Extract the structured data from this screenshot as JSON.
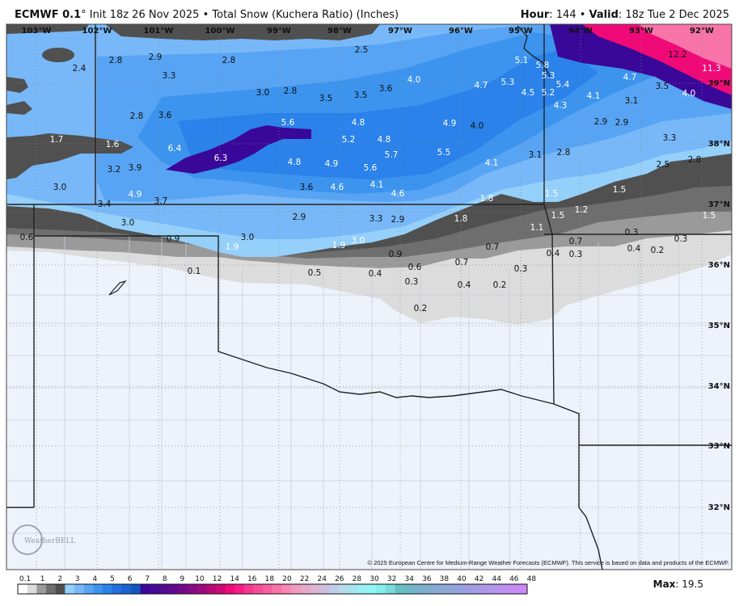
{
  "header": {
    "model": "ECMWF 0.1",
    "degree": "°",
    "title_rest": " Init 18z 26 Nov 2025 • Total Snow (Kuchera Ratio) (Inches)",
    "hour_label": "Hour",
    "hour_value": ": 144 • ",
    "valid_label": "Valid",
    "valid_value": ": 18z Tue 2 Dec 2025"
  },
  "map": {
    "longitudes": [
      "103°W",
      "102°W",
      "101°W",
      "100°W",
      "99°W",
      "98°W",
      "97°W",
      "96°W",
      "95°W",
      "94°W",
      "93°W",
      "92°W"
    ],
    "latitudes": [
      "39°N",
      "38°N",
      "37°N",
      "36°N",
      "35°N",
      "34°N",
      "33°N",
      "32°N"
    ],
    "snow_labels": [
      "2.4",
      "2.8",
      "2.9",
      "2.8",
      "3.3",
      "3.0",
      "2.8",
      "3.5",
      "3.5",
      "3.6",
      "2.5",
      "4.0",
      "4.7",
      "5.3",
      "5.1",
      "5.8",
      "5.3",
      "4.5",
      "5.2",
      "5.4",
      "4.3",
      "4.1",
      "4.7",
      "12.2",
      "11.3",
      "3.5",
      "4.0",
      "3.1",
      "2.9",
      "2.9",
      "3.3",
      "2.8",
      "2.5",
      "2.8",
      "3.1",
      "1.5",
      "1.5",
      "1.2",
      "1.5",
      "1.5",
      "0.3",
      "0.7",
      "0.4",
      "0.3",
      "0.2",
      "0.4",
      "0.3",
      "2.8",
      "3.6",
      "1.7",
      "1.6",
      "6.4",
      "6.3",
      "3.2",
      "3.9",
      "3.0",
      "4.9",
      "3.7",
      "3.4",
      "3.0",
      "5.6",
      "4.8",
      "5.2",
      "4.8",
      "4.9",
      "4.0",
      "4.8",
      "4.9",
      "5.6",
      "5.7",
      "5.5",
      "4.1",
      "3.6",
      "4.6",
      "4.1",
      "4.6",
      "1.8",
      "1.8",
      "2.9",
      "3.3",
      "2.9",
      "1.1",
      "0.6",
      "0.9",
      "3.0",
      "1.9",
      "1.9",
      "3.0",
      "0.1",
      "0.5",
      "0.9",
      "0.7",
      "0.6",
      "0.7",
      "0.3",
      "0.4",
      "0.3",
      "0.4",
      "0.2",
      "0.2"
    ],
    "logo": "WeatherBELL",
    "credit": "© 2025 European Centre for Medium-Range Weather Forecasts (ECMWF). This service is based on data and products of the ECMWF."
  },
  "colorbar": {
    "ticks": [
      "0.1",
      "1",
      "2",
      "3",
      "4",
      "5",
      "6",
      "7",
      "8",
      "9",
      "10",
      "12",
      "14",
      "16",
      "18",
      "20",
      "22",
      "24",
      "26",
      "28",
      "30",
      "32",
      "34",
      "36",
      "38",
      "40",
      "42",
      "44",
      "46",
      "48"
    ],
    "colors": [
      "#ffffff",
      "#dcdcdc",
      "#9a9a9a",
      "#6e6e6e",
      "#505050",
      "#94d0fa",
      "#78b8f8",
      "#58a4f4",
      "#3c94ee",
      "#2a82ea",
      "#2070e0",
      "#1a62d2",
      "#1058c0",
      "#3a0898",
      "#480a98",
      "#520c90",
      "#600a90",
      "#740a88",
      "#880a84",
      "#9c0a7c",
      "#b40a78",
      "#cc0a74",
      "#f00a78",
      "#f81c84",
      "#f83890",
      "#f84c98",
      "#f860a0",
      "#f874a8",
      "#f888b4",
      "#f09cc0",
      "#e8a8c8",
      "#dcb4d4",
      "#d0bcdc",
      "#c0ccec",
      "#b8dcec",
      "#a8e4f0",
      "#98f0f0",
      "#90f8f4",
      "#88ecec",
      "#78dcd8",
      "#68c0c4",
      "#70b8c8",
      "#78b0cc",
      "#80acd0",
      "#88acd4",
      "#90a8d8",
      "#94a4dc",
      "#9ca0e0",
      "#a49ce4",
      "#ac98e8",
      "#b494ec",
      "#bc90f0",
      "#c48cf4",
      "#cc88f8"
    ],
    "max_label": "Max",
    "max_value": ": 19.5"
  }
}
